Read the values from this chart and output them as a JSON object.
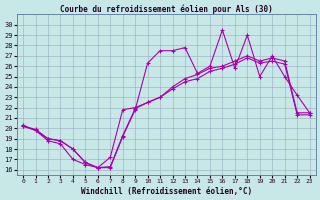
{
  "title": "Courbe du refroidissement éolien pour Als (30)",
  "xlabel": "Windchill (Refroidissement éolien,°C)",
  "bg_color": "#c8e8e8",
  "line_color": "#aa00aa",
  "grid_color": "#99aabb",
  "ylim": [
    15.5,
    31.0
  ],
  "xlim": [
    -0.5,
    23.5
  ],
  "yticks": [
    16,
    17,
    18,
    19,
    20,
    21,
    22,
    23,
    24,
    25,
    26,
    27,
    28,
    29,
    30
  ],
  "xticks": [
    0,
    1,
    2,
    3,
    4,
    5,
    6,
    7,
    8,
    9,
    10,
    11,
    12,
    13,
    14,
    15,
    16,
    17,
    18,
    19,
    20,
    21,
    22,
    23
  ],
  "series1_x": [
    0,
    1,
    2,
    3,
    4,
    5,
    6,
    7,
    8,
    9,
    10,
    11,
    12,
    13,
    14,
    15,
    16,
    17,
    18,
    19,
    20,
    21,
    22,
    23
  ],
  "series1_y": [
    20.2,
    19.9,
    19.0,
    18.8,
    18.0,
    16.7,
    16.2,
    16.2,
    19.2,
    21.8,
    26.3,
    27.5,
    27.5,
    27.8,
    25.3,
    26.0,
    29.5,
    25.8,
    29.0,
    25.0,
    27.0,
    25.0,
    23.2,
    21.5
  ],
  "series2_x": [
    0,
    1,
    2,
    3,
    4,
    5,
    6,
    7,
    8,
    9,
    10,
    11,
    12,
    13,
    14,
    15,
    16,
    17,
    18,
    19,
    20,
    21,
    22,
    23
  ],
  "series2_y": [
    20.3,
    19.8,
    18.8,
    18.5,
    17.0,
    16.5,
    16.2,
    17.2,
    21.8,
    22.0,
    22.5,
    23.0,
    24.0,
    24.8,
    25.2,
    25.8,
    26.0,
    26.5,
    27.0,
    26.5,
    26.8,
    26.5,
    21.5,
    21.5
  ],
  "series3_x": [
    0,
    1,
    2,
    3,
    4,
    5,
    6,
    7,
    8,
    9,
    10,
    11,
    12,
    13,
    14,
    15,
    16,
    17,
    18,
    19,
    20,
    21,
    22,
    23
  ],
  "series3_y": [
    20.2,
    19.8,
    19.0,
    18.8,
    18.0,
    16.7,
    16.2,
    16.3,
    19.3,
    21.9,
    22.5,
    23.0,
    23.8,
    24.5,
    24.8,
    25.5,
    25.8,
    26.2,
    26.8,
    26.3,
    26.5,
    26.2,
    21.3,
    21.3
  ]
}
